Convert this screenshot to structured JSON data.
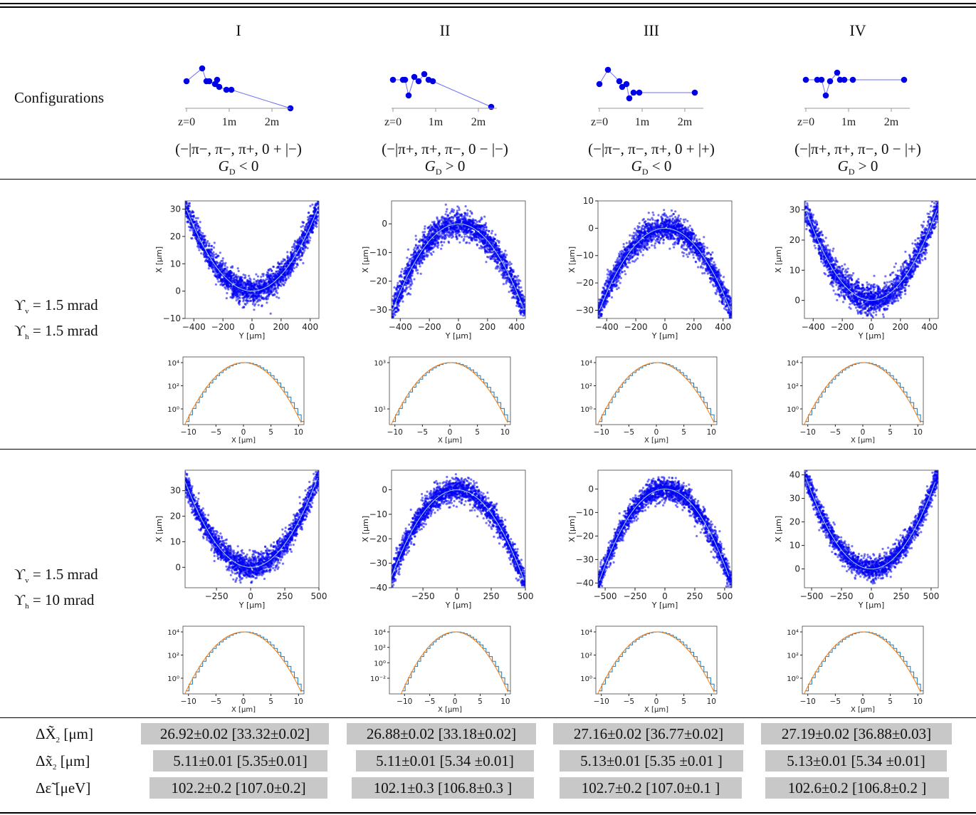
{
  "columns": [
    "I",
    "II",
    "III",
    "IV"
  ],
  "row_labels": {
    "configurations": "Configurations",
    "row1": [
      "ϒ",
      "v",
      " = 1.5 mrad",
      "ϒ",
      "h",
      " = 1.5 mrad"
    ],
    "row2": [
      "ϒ",
      "v",
      " = 1.5 mrad",
      "ϒ",
      "h",
      " = 10 mrad"
    ]
  },
  "configs": [
    {
      "sign": "(−|π−, π−, π+, 0 + |−)",
      "gd": "G",
      "gd_sub": "D",
      "gd_rel": " < 0"
    },
    {
      "sign": "(−|π+, π+, π−, 0 − |−)",
      "gd": "G",
      "gd_sub": "D",
      "gd_rel": " > 0"
    },
    {
      "sign": "(−|π−, π−, π+, 0 + |+)",
      "gd": "G",
      "gd_sub": "D",
      "gd_rel": " < 0"
    },
    {
      "sign": "(−|π+, π+, π−, 0 − |+)",
      "gd": "G",
      "gd_sub": "D",
      "gd_rel": " > 0"
    }
  ],
  "config_axis_ticks": [
    "z=0",
    "1m",
    "2m"
  ],
  "axis_labels": {
    "scatter_x": "Y [μm]",
    "scatter_y": "X [μm]",
    "hist_x": "X [μm]"
  },
  "chart_data": [
    {
      "type": "scatter",
      "id": "r1c1",
      "shape": "parabola-up",
      "xlim": [
        -460,
        460
      ],
      "ylim": [
        -10,
        33
      ],
      "xticks": [
        -400,
        -200,
        0,
        200,
        400
      ],
      "yticks": [
        -10,
        0,
        10,
        20,
        30
      ]
    },
    {
      "type": "scatter",
      "id": "r1c2",
      "shape": "parabola-down",
      "xlim": [
        -460,
        460
      ],
      "ylim": [
        -33,
        8
      ],
      "xticks": [
        -400,
        -200,
        0,
        200,
        400
      ],
      "yticks": [
        0,
        -10,
        -20,
        -30
      ]
    },
    {
      "type": "scatter",
      "id": "r1c3",
      "shape": "parabola-down",
      "xlim": [
        -460,
        460
      ],
      "ylim": [
        -33,
        10
      ],
      "xticks": [
        -400,
        -200,
        0,
        200,
        400
      ],
      "yticks": [
        10,
        0,
        -10,
        -20,
        -30
      ]
    },
    {
      "type": "scatter",
      "id": "r1c4",
      "shape": "parabola-up",
      "xlim": [
        -460,
        460
      ],
      "ylim": [
        -6,
        33
      ],
      "xticks": [
        -400,
        -200,
        0,
        200,
        400
      ],
      "yticks": [
        0,
        10,
        20,
        30
      ]
    },
    {
      "type": "scatter",
      "id": "r2c1",
      "shape": "parabola-up",
      "xlim": [
        -480,
        500
      ],
      "ylim": [
        -8,
        38
      ],
      "xticks": [
        -250,
        0,
        250,
        500
      ],
      "yticks": [
        0,
        10,
        20,
        30
      ]
    },
    {
      "type": "scatter",
      "id": "r2c2",
      "shape": "parabola-down",
      "xlim": [
        -480,
        500
      ],
      "ylim": [
        -40,
        8
      ],
      "xticks": [
        -250,
        0,
        250,
        500
      ],
      "yticks": [
        0,
        -10,
        -20,
        -30,
        -40
      ]
    },
    {
      "type": "scatter",
      "id": "r2c3",
      "shape": "parabola-down",
      "xlim": [
        -560,
        560
      ],
      "ylim": [
        -42,
        8
      ],
      "xticks": [
        -500,
        -250,
        0,
        250,
        500
      ],
      "yticks": [
        0,
        -10,
        -20,
        -30,
        -40
      ]
    },
    {
      "type": "scatter",
      "id": "r2c4",
      "shape": "parabola-up",
      "xlim": [
        -560,
        560
      ],
      "ylim": [
        -8,
        42
      ],
      "xticks": [
        -500,
        -250,
        0,
        250,
        500
      ],
      "yticks": [
        0,
        10,
        20,
        30,
        40
      ]
    }
  ],
  "hist_data": [
    {
      "id": "h1c1",
      "xlim": [
        -11,
        11
      ],
      "xticks": [
        -10,
        -5,
        0,
        5,
        10
      ],
      "yticks": [
        "10⁰",
        "10²",
        "10⁴"
      ]
    },
    {
      "id": "h1c2",
      "xlim": [
        -11,
        11
      ],
      "xticks": [
        -10,
        -5,
        0,
        5,
        10
      ],
      "yticks": [
        "10¹",
        "10³"
      ]
    },
    {
      "id": "h1c3",
      "xlim": [
        -11,
        11
      ],
      "xticks": [
        -10,
        -5,
        0,
        5,
        10
      ],
      "yticks": [
        "10⁰",
        "10²",
        "10⁴"
      ]
    },
    {
      "id": "h1c4",
      "xlim": [
        -11,
        11
      ],
      "xticks": [
        -10,
        -5,
        0,
        5,
        10
      ],
      "yticks": [
        "10⁰",
        "10²",
        "10⁴"
      ]
    },
    {
      "id": "h2c1",
      "xlim": [
        -11,
        11
      ],
      "xticks": [
        -10,
        -5,
        0,
        5,
        10
      ],
      "yticks": [
        "10⁰",
        "10²",
        "10⁴"
      ]
    },
    {
      "id": "h2c2",
      "xlim": [
        -13,
        11
      ],
      "xticks": [
        -10,
        -5,
        0,
        5,
        10
      ],
      "yticks": [
        "10⁻²",
        "10⁰",
        "10²",
        "10⁴"
      ]
    },
    {
      "id": "h2c3",
      "xlim": [
        -11,
        11
      ],
      "xticks": [
        -10,
        -5,
        0,
        5,
        10
      ],
      "yticks": [
        "10⁰",
        "10²",
        "10⁴"
      ]
    },
    {
      "id": "h2c4",
      "xlim": [
        -11,
        11
      ],
      "xticks": [
        -10,
        -5,
        0,
        5,
        10
      ],
      "yticks": [
        "10⁰",
        "10²",
        "10⁴"
      ]
    }
  ],
  "metrics": [
    {
      "label": "ΔX̃",
      "sub": "2",
      "unit": " [μm]",
      "values": [
        "26.92±0.02 [33.32±0.02]",
        "26.88±0.02 [33.18±0.02]",
        "27.16±0.02 [36.77±0.02]",
        "27.19±0.02 [36.88±0.03]"
      ]
    },
    {
      "label": "Δx̃",
      "sub": "2",
      "unit": " [μm]",
      "values": [
        "5.11±0.01 [5.35±0.01]",
        "5.11±0.01 [5.34 ±0.01]",
        "5.13±0.01 [5.35 ±0.01 ]",
        "5.13±0.01 [5.34 ±0.01]"
      ]
    },
    {
      "label": "Δε̃",
      "sub": "",
      "unit": " [μeV]",
      "values": [
        "102.2±0.2 [107.0±0.2]",
        "102.1±0.3 [106.8±0.3 ]",
        "102.7±0.2 [107.0±0.1 ]",
        "102.6±0.2 [106.8±0.2 ]"
      ]
    }
  ]
}
